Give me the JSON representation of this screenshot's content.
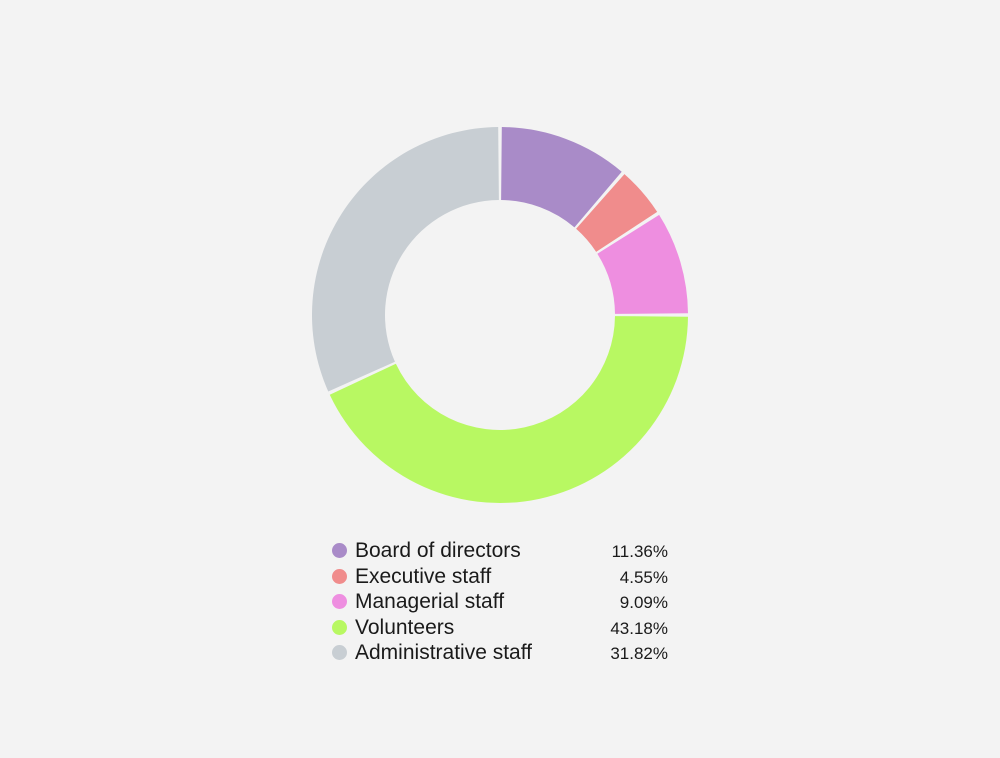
{
  "chart_data": {
    "type": "pie",
    "donut": true,
    "categories": [
      "Board of directors",
      "Executive staff",
      "Managerial staff",
      "Volunteers",
      "Administrative staff"
    ],
    "values": [
      11.36,
      4.55,
      9.09,
      43.18,
      31.82
    ],
    "value_labels": [
      "11.36%",
      "4.55%",
      "9.09%",
      "43.18%",
      "31.82%"
    ],
    "colors": [
      "#a98bc8",
      "#f08c8c",
      "#ee8ee0",
      "#b8f862",
      "#c8ced3"
    ],
    "legend_position": "bottom"
  }
}
